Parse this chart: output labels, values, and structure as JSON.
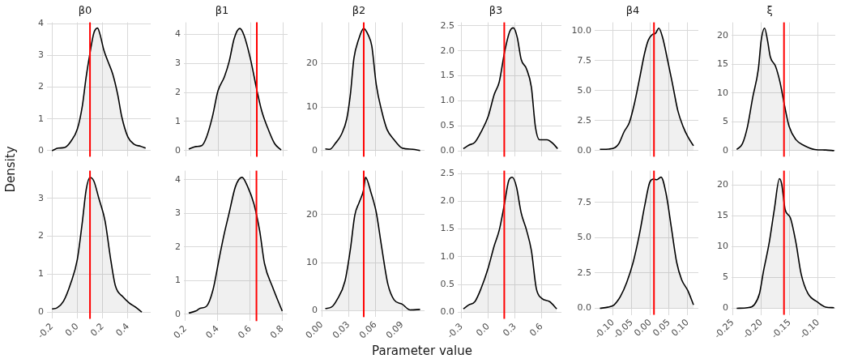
{
  "chart_data": [
    {
      "type": "area",
      "title": "β0",
      "ylabel": "Density",
      "grid": true,
      "tick_labels": "y",
      "xlim": [
        -0.24,
        0.58
      ],
      "xticks": [
        -0.2,
        0,
        0.2,
        0.4
      ],
      "ylim": [
        -0.19,
        4.04
      ],
      "yticks": [
        0,
        1,
        2,
        3,
        4
      ],
      "ref_lines": [
        {
          "axis": "x",
          "value": 0.1,
          "color": "#ff0000"
        }
      ],
      "series": [
        {
          "color": "#000000",
          "x": [
            -0.2,
            -0.15,
            -0.1,
            -0.05,
            0,
            0.04,
            0.07,
            0.1,
            0.13,
            0.16,
            0.18,
            0.21,
            0.24,
            0.28,
            0.32,
            0.35,
            0.4,
            0.45,
            0.5,
            0.54
          ],
          "values": [
            0.0,
            0.08,
            0.1,
            0.3,
            0.68,
            1.42,
            2.33,
            3.07,
            3.7,
            3.86,
            3.65,
            3.16,
            2.83,
            2.41,
            1.75,
            1.09,
            0.43,
            0.2,
            0.14,
            0.08
          ]
        }
      ]
    },
    {
      "type": "area",
      "title": "β1",
      "grid": true,
      "tick_labels": "y",
      "xlim": [
        0.19,
        0.83
      ],
      "xticks": [
        0.2,
        0.4,
        0.6,
        0.8
      ],
      "ylim": [
        -0.21,
        4.41
      ],
      "yticks": [
        0,
        1,
        2,
        3,
        4
      ],
      "ref_lines": [
        {
          "axis": "x",
          "value": 0.64,
          "color": "#ff0000"
        }
      ],
      "series": [
        {
          "color": "#000000",
          "x": [
            0.22,
            0.264,
            0.3,
            0.33,
            0.367,
            0.4,
            0.44,
            0.47,
            0.5,
            0.535,
            0.56,
            0.6,
            0.64,
            0.67,
            0.71,
            0.75,
            0.79
          ],
          "values": [
            0.05,
            0.14,
            0.17,
            0.47,
            1.19,
            2.05,
            2.54,
            3.08,
            3.85,
            4.2,
            3.98,
            3.17,
            2.09,
            1.37,
            0.74,
            0.24,
            0.02
          ]
        }
      ]
    },
    {
      "type": "area",
      "title": "β2",
      "grid": true,
      "tick_labels": "y",
      "xlim": [
        -0.001,
        0.115
      ],
      "xticks": [
        0,
        0.03,
        0.06,
        0.09
      ],
      "ylim": [
        -1.4,
        29.5
      ],
      "yticks": [
        0,
        10,
        20
      ],
      "ref_lines": [
        {
          "axis": "x",
          "value": 0.047,
          "color": "#ff0000"
        }
      ],
      "series": [
        {
          "color": "#000000",
          "x": [
            0.004,
            0.009,
            0.015,
            0.022,
            0.028,
            0.032,
            0.036,
            0.041,
            0.047,
            0.052,
            0.056,
            0.061,
            0.067,
            0.073,
            0.081,
            0.09,
            0.102,
            0.11
          ],
          "values": [
            0.4,
            0.3,
            1.6,
            3.7,
            7.3,
            12.8,
            21.2,
            25.4,
            28.1,
            26.6,
            24.1,
            15.2,
            9.2,
            4.9,
            2.5,
            0.6,
            0.3,
            0.0
          ]
        }
      ]
    },
    {
      "type": "area",
      "title": "β3",
      "grid": true,
      "tick_labels": "y",
      "xlim": [
        -0.343,
        0.823
      ],
      "xticks": [
        -0.3,
        0,
        0.3,
        0.6
      ],
      "ylim": [
        -0.12,
        2.57
      ],
      "yticks": [
        {
          "value": 0,
          "label": "0.0"
        },
        0.5,
        {
          "value": 1,
          "label": "1.0"
        },
        1.5,
        {
          "value": 2,
          "label": "2.0"
        },
        2.5
      ],
      "ref_lines": [
        {
          "axis": "x",
          "value": 0.18,
          "color": "#ff0000"
        }
      ],
      "series": [
        {
          "color": "#000000",
          "x": [
            -0.28,
            -0.22,
            -0.15,
            -0.08,
            0.0,
            0.066,
            0.124,
            0.182,
            0.24,
            0.283,
            0.326,
            0.37,
            0.43,
            0.485,
            0.53,
            0.577,
            0.66,
            0.73,
            0.78
          ],
          "values": [
            0.04,
            0.11,
            0.17,
            0.38,
            0.69,
            1.12,
            1.38,
            1.96,
            2.38,
            2.46,
            2.27,
            1.83,
            1.64,
            1.27,
            0.48,
            0.22,
            0.22,
            0.14,
            0.04
          ]
        }
      ]
    },
    {
      "type": "area",
      "title": "β4",
      "grid": true,
      "tick_labels": "y",
      "xlim": [
        -0.149,
        0.129
      ],
      "xticks": [
        -0.1,
        -0.05,
        0,
        0.05,
        0.1
      ],
      "ylim": [
        -0.51,
        10.7
      ],
      "yticks": [
        {
          "value": 0,
          "label": "0.0"
        },
        2.5,
        {
          "value": 5,
          "label": "5.0"
        },
        7.5,
        {
          "value": 10,
          "label": "10.0"
        }
      ],
      "ref_lines": [
        {
          "axis": "x",
          "value": 0.01,
          "color": "#ff0000"
        }
      ],
      "series": [
        {
          "color": "#000000",
          "x": [
            -0.135,
            -0.111,
            -0.094,
            -0.084,
            -0.07,
            -0.056,
            -0.042,
            -0.029,
            -0.015,
            -0.005,
            0.005,
            0.014,
            0.023,
            0.033,
            0.047,
            0.06,
            0.074,
            0.088,
            0.101,
            0.116
          ],
          "values": [
            0.11,
            0.13,
            0.26,
            0.59,
            1.58,
            2.34,
            3.98,
            5.95,
            8.14,
            9.23,
            9.67,
            9.78,
            10.22,
            9.45,
            7.48,
            5.51,
            3.33,
            2.01,
            1.14,
            0.4
          ]
        }
      ]
    },
    {
      "type": "area",
      "title": "ξ",
      "grid": true,
      "tick_labels": "y",
      "xlim": [
        -0.252,
        -0.07
      ],
      "xticks": [
        -0.25,
        -0.2,
        -0.15,
        -0.1
      ],
      "ylim": [
        -1.06,
        22.3
      ],
      "yticks": [
        0,
        5,
        10,
        15,
        20
      ],
      "ref_lines": [
        {
          "axis": "x",
          "value": -0.16,
          "color": "#ff0000"
        }
      ],
      "series": [
        {
          "color": "#000000",
          "x": [
            -0.243,
            -0.233,
            -0.224,
            -0.215,
            -0.205,
            -0.2,
            -0.194,
            -0.189,
            -0.184,
            -0.175,
            -0.167,
            -0.159,
            -0.151,
            -0.139,
            -0.125,
            -0.106,
            -0.087,
            -0.072
          ],
          "values": [
            0.2,
            1.2,
            4.2,
            9.2,
            14.2,
            19.2,
            21.3,
            19.2,
            16.3,
            14.7,
            11.9,
            7.8,
            4.2,
            1.9,
            0.9,
            0.2,
            0.1,
            0.0
          ]
        }
      ]
    },
    {
      "type": "area",
      "grid": true,
      "xlim": [
        -0.24,
        0.58
      ],
      "xticks": [
        -0.2,
        {
          "value": 0,
          "label": "0.0"
        },
        0.2,
        0.4
      ],
      "ylim": [
        -0.18,
        3.73
      ],
      "yticks": [
        0,
        1,
        2,
        3
      ],
      "ref_lines": [
        {
          "axis": "x",
          "value": 0.1,
          "color": "#ff0000"
        }
      ],
      "series": [
        {
          "color": "#000000",
          "x": [
            -0.2,
            -0.16,
            -0.11,
            -0.05,
            0,
            0.04,
            0.07,
            0.1,
            0.13,
            0.17,
            0.22,
            0.26,
            0.3,
            0.36,
            0.41,
            0.46,
            0.51
          ],
          "values": [
            0.08,
            0.11,
            0.28,
            0.78,
            1.39,
            2.39,
            3.23,
            3.55,
            3.46,
            3.0,
            2.39,
            1.47,
            0.7,
            0.4,
            0.24,
            0.13,
            0.0
          ]
        }
      ]
    },
    {
      "type": "area",
      "grid": true,
      "xlim": [
        0.19,
        0.83
      ],
      "xticks": [
        0.2,
        0.4,
        0.6,
        0.8
      ],
      "ylim": [
        -0.2,
        4.27
      ],
      "yticks": [
        0,
        1,
        2,
        3,
        4
      ],
      "ref_lines": [
        {
          "axis": "x",
          "value": 0.64,
          "color": "#ff0000"
        }
      ],
      "series": [
        {
          "color": "#000000",
          "x": [
            0.22,
            0.264,
            0.29,
            0.33,
            0.37,
            0.41,
            0.44,
            0.47,
            0.51,
            0.55,
            0.585,
            0.625,
            0.66,
            0.69,
            0.74,
            0.78,
            0.8
          ],
          "values": [
            0.04,
            0.1,
            0.18,
            0.24,
            0.72,
            1.69,
            2.39,
            3.0,
            3.8,
            4.07,
            3.8,
            3.27,
            2.48,
            1.51,
            0.81,
            0.33,
            0.1
          ]
        }
      ]
    },
    {
      "type": "area",
      "grid": true,
      "xlabel": "Parameter value",
      "xlim": [
        -0.001,
        0.115
      ],
      "xticks": [
        {
          "value": 0,
          "label": "0.00"
        },
        0.03,
        0.06,
        0.09
      ],
      "ylim": [
        -1.4,
        29.2
      ],
      "yticks": [
        0,
        10,
        20
      ],
      "ref_lines": [
        {
          "axis": "x",
          "value": 0.047,
          "color": "#ff0000"
        }
      ],
      "series": [
        {
          "color": "#000000",
          "x": [
            0.004,
            0.011,
            0.017,
            0.026,
            0.032,
            0.037,
            0.042,
            0.047,
            0.049,
            0.055,
            0.061,
            0.067,
            0.074,
            0.081,
            0.09,
            0.099,
            0.11
          ],
          "values": [
            0.4,
            0.7,
            2.2,
            6.1,
            12.7,
            19.9,
            22.6,
            25.3,
            27.8,
            24.7,
            20.5,
            13.3,
            5.5,
            2.2,
            1.3,
            0.1,
            0.2
          ]
        }
      ]
    },
    {
      "type": "area",
      "grid": true,
      "xlim": [
        -0.343,
        0.823
      ],
      "xticks": [
        -0.3,
        {
          "value": 0,
          "label": "0.0"
        },
        0.3,
        0.6
      ],
      "ylim": [
        -0.12,
        2.55
      ],
      "yticks": [
        {
          "value": 0,
          "label": "0.0"
        },
        0.5,
        {
          "value": 1,
          "label": "1.0"
        },
        1.5,
        {
          "value": 2,
          "label": "2.0"
        },
        2.5
      ],
      "ref_lines": [
        {
          "axis": "x",
          "value": 0.18,
          "color": "#ff0000"
        }
      ],
      "series": [
        {
          "color": "#000000",
          "x": [
            -0.28,
            -0.22,
            -0.15,
            -0.08,
            0.0,
            0.066,
            0.124,
            0.182,
            0.23,
            0.27,
            0.317,
            0.37,
            0.43,
            0.485,
            0.54,
            0.6,
            0.69,
            0.77
          ],
          "values": [
            0.06,
            0.13,
            0.19,
            0.43,
            0.8,
            1.19,
            1.48,
            1.95,
            2.37,
            2.43,
            2.26,
            1.79,
            1.48,
            1.11,
            0.43,
            0.25,
            0.19,
            0.06
          ]
        }
      ]
    },
    {
      "type": "area",
      "grid": true,
      "xlim": [
        -0.149,
        0.129
      ],
      "xticks": [
        {
          "value": -0.1,
          "label": "-0.10"
        },
        -0.05,
        {
          "value": 0,
          "label": "0.00"
        },
        0.05,
        {
          "value": 0.1,
          "label": "0.10"
        }
      ],
      "ylim": [
        -0.46,
        9.74
      ],
      "yticks": [
        {
          "value": 0,
          "label": "0.0"
        },
        2.5,
        {
          "value": 5,
          "label": "5.0"
        },
        7.5
      ],
      "ref_lines": [
        {
          "axis": "x",
          "value": 0.01,
          "color": "#ff0000"
        }
      ],
      "series": [
        {
          "color": "#000000",
          "x": [
            -0.135,
            -0.114,
            -0.097,
            -0.08,
            -0.063,
            -0.046,
            -0.029,
            -0.015,
            -0.001,
            0.009,
            0.018,
            0.029,
            0.043,
            0.057,
            0.071,
            0.084,
            0.101,
            0.116
          ],
          "values": [
            0.0,
            0.08,
            0.24,
            0.84,
            1.84,
            3.24,
            5.24,
            7.24,
            8.94,
            9.14,
            9.1,
            9.28,
            8.04,
            5.64,
            3.24,
            2.04,
            1.24,
            0.24
          ]
        }
      ]
    },
    {
      "type": "area",
      "grid": true,
      "xlim": [
        -0.252,
        -0.07
      ],
      "xticks": [
        -0.25,
        {
          "value": -0.2,
          "label": "-0.20"
        },
        -0.15,
        {
          "value": -0.1,
          "label": "-0.10"
        }
      ],
      "ylim": [
        -1.06,
        22.3
      ],
      "yticks": [
        0,
        5,
        10,
        15,
        20
      ],
      "ref_lines": [
        {
          "axis": "x",
          "value": -0.16,
          "color": "#ff0000"
        }
      ],
      "series": [
        {
          "color": "#000000",
          "x": [
            -0.243,
            -0.224,
            -0.212,
            -0.203,
            -0.196,
            -0.186,
            -0.177,
            -0.168,
            -0.164,
            -0.158,
            -0.149,
            -0.139,
            -0.13,
            -0.118,
            -0.101,
            -0.087,
            -0.072
          ],
          "values": [
            0,
            0.1,
            0.6,
            2.4,
            6.0,
            10.6,
            16.0,
            21.0,
            20.1,
            16.0,
            14.7,
            10.6,
            5.6,
            2.4,
            1.0,
            0.2,
            0.1
          ]
        }
      ]
    }
  ]
}
